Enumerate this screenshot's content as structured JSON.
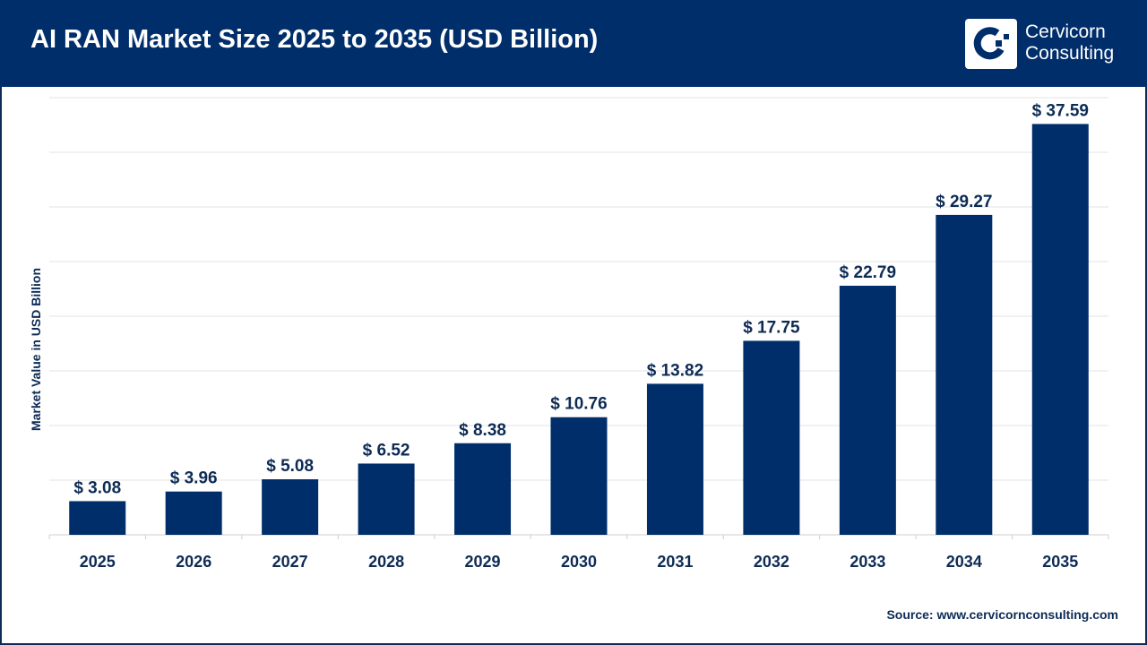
{
  "header": {
    "title": "AI RAN Market Size 2025 to 2035 (USD Billion)",
    "logo_line1": "Cervicorn",
    "logo_line2": "Consulting"
  },
  "source": "Source: www.cervicornconsulting.com",
  "colors": {
    "bar": "#002e6b",
    "header": "#002e6b",
    "grid": "#e3e3e3"
  },
  "chart_data": {
    "type": "bar",
    "title": "AI RAN Market Size 2025 to 2035 (USD Billion)",
    "ylabel": "Market Value in USD Billion",
    "xlabel": "",
    "categories": [
      "2025",
      "2026",
      "2027",
      "2028",
      "2029",
      "2030",
      "2031",
      "2032",
      "2033",
      "2034",
      "2035"
    ],
    "values": [
      3.08,
      3.96,
      5.08,
      6.52,
      8.38,
      10.76,
      13.82,
      17.75,
      22.79,
      29.27,
      37.59
    ],
    "data_labels": [
      "$ 3.08",
      "$ 3.96",
      "$ 5.08",
      "$ 6.52",
      "$ 8.38",
      "$ 10.76",
      "$ 13.82",
      "$ 17.75",
      "$ 22.79",
      "$ 29.27",
      "$ 37.59"
    ],
    "ylim": [
      0,
      40
    ],
    "grid_step": 5,
    "grid": true,
    "y_tick_labels_shown": false
  }
}
